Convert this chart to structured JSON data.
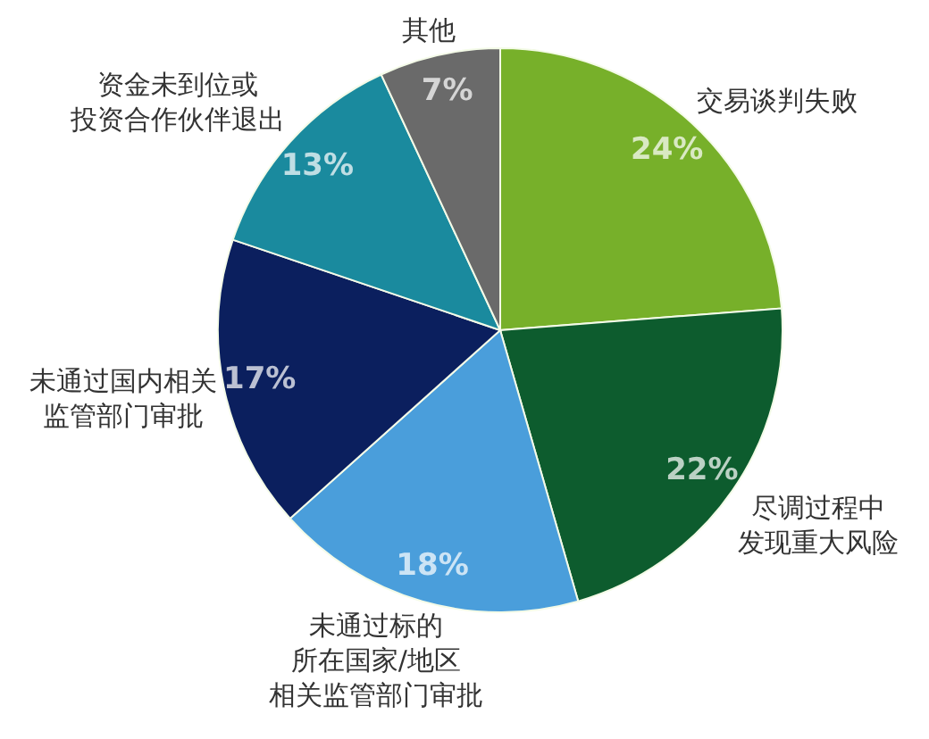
{
  "chart_data": {
    "type": "pie",
    "categories": [
      "交易谈判失败",
      "尽调过程中发现重大风险",
      "未通过标的所在国家/地区相关监管部门审批",
      "未通过国内相关监管部门审批",
      "资金未到位或投资合作伙伴退出",
      "其他"
    ],
    "values": [
      24,
      22,
      18,
      17,
      13,
      7
    ],
    "colors": [
      "#77b02a",
      "#0d5c2e",
      "#4a9edb",
      "#0b1f5e",
      "#1a8a9e",
      "#6a6a6a"
    ],
    "value_labels": [
      "24%",
      "22%",
      "18%",
      "17%",
      "13%",
      "7%"
    ]
  }
}
